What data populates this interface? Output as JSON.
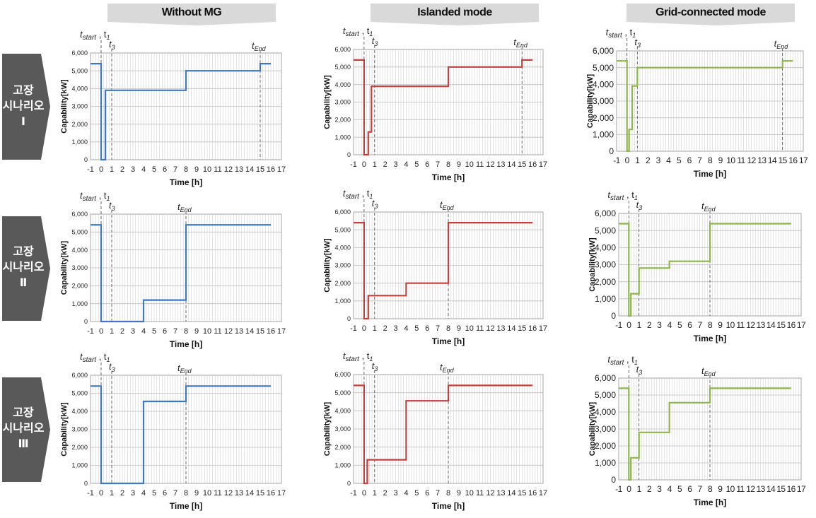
{
  "columns": [
    "Without MG",
    "Islanded mode",
    "Grid-connected mode"
  ],
  "rows": [
    "고장\n시나리오\nⅠ",
    "고장\n시나리오\nⅡ",
    "고장\n시나리오\nⅢ"
  ],
  "colors": {
    "without_mg": "#3f78bc",
    "islanded": "#c0413e",
    "grid_connected": "#8db54a",
    "header_bg": "#d9d9d9",
    "row_label_bg": "#595959",
    "grid": "#d0d0d0"
  },
  "chart_data": [
    {
      "type": "line",
      "scenario": "고장 시나리오 Ⅰ",
      "mode": "Without MG",
      "xlabel": "Time [h]",
      "ylabel": "Capability[kW]",
      "xlim": [
        -1,
        17
      ],
      "ylim": [
        0,
        6000
      ],
      "x_ticks": [
        "-1",
        "0",
        "1",
        "2",
        "3",
        "4",
        "5",
        "6",
        "7",
        "8",
        "9",
        "10",
        "11",
        "12",
        "13",
        "14",
        "15",
        "16",
        "17"
      ],
      "y_ticks": [
        "0",
        "1,000",
        "2,000",
        "3,000",
        "4,000",
        "5,000",
        "6,000"
      ],
      "y_tick_font": 9,
      "x_tick_compact": false,
      "annotations": {
        "t_start_t1": 0,
        "t3": 1,
        "t_end": 15
      },
      "series": [
        {
          "x": [
            -1,
            0,
            0,
            0.4,
            0.4,
            8,
            8,
            15,
            15,
            16
          ],
          "y": [
            5400,
            5400,
            0,
            0,
            3900,
            3900,
            5000,
            5000,
            5400,
            5400
          ]
        }
      ]
    },
    {
      "type": "line",
      "scenario": "고장 시나리오 Ⅰ",
      "mode": "Islanded mode",
      "xlabel": "Time [h]",
      "ylabel": "Capability[kW]",
      "xlim": [
        -1,
        17
      ],
      "ylim": [
        0,
        6000
      ],
      "x_ticks": [
        "-1",
        "0",
        "1",
        "2",
        "3",
        "4",
        "5",
        "6",
        "7",
        "8",
        "9",
        "10",
        "11",
        "12",
        "13",
        "14",
        "15",
        "16",
        "17"
      ],
      "y_ticks": [
        "0",
        "1,000",
        "2,000",
        "3,000",
        "4,000",
        "5,000",
        "6,000"
      ],
      "y_tick_font": 9,
      "x_tick_compact": false,
      "annotations": {
        "t_start_t1": 0,
        "t3": 1,
        "t_end": 15
      },
      "series": [
        {
          "x": [
            -1,
            0,
            0,
            0.4,
            0.4,
            0.7,
            0.7,
            8,
            8,
            15,
            15,
            16
          ],
          "y": [
            5400,
            5400,
            0,
            0,
            1300,
            1300,
            3900,
            3900,
            5000,
            5000,
            5400,
            5400
          ]
        }
      ]
    },
    {
      "type": "line",
      "scenario": "고장 시나리오 Ⅰ",
      "mode": "Grid-connected mode",
      "xlabel": "Time [h]",
      "ylabel": "Capability[kW]",
      "xlim": [
        -1,
        17
      ],
      "ylim": [
        0,
        6000
      ],
      "x_ticks": [
        "-1",
        "0",
        "1",
        "2",
        "3",
        "4",
        "5",
        "6",
        "7",
        "8",
        "9",
        "10",
        "11",
        "12",
        "13",
        "14",
        "15",
        "16",
        "17"
      ],
      "y_ticks": [
        "0",
        "1,000",
        "2,000",
        "3,000",
        "4,000",
        "5,000",
        "6,000"
      ],
      "y_tick_font": 12,
      "x_tick_compact": true,
      "annotations": {
        "t_start_t1": 0,
        "t3": 1,
        "t_end": 15
      },
      "series": [
        {
          "x": [
            -1,
            0,
            0,
            0.2,
            0.2,
            0.5,
            0.5,
            1,
            1,
            15,
            15,
            16
          ],
          "y": [
            5400,
            5400,
            0,
            0,
            1300,
            1300,
            3900,
            3900,
            5000,
            5000,
            5400,
            5400
          ]
        }
      ]
    },
    {
      "type": "line",
      "scenario": "고장 시나리오 Ⅱ",
      "mode": "Without MG",
      "xlabel": "Time [h]",
      "ylabel": "Capability[kW]",
      "xlim": [
        -1,
        17
      ],
      "ylim": [
        0,
        6000
      ],
      "x_ticks": [
        "-1",
        "0",
        "1",
        "2",
        "3",
        "4",
        "5",
        "6",
        "7",
        "8",
        "9",
        "10",
        "11",
        "12",
        "13",
        "14",
        "15",
        "16",
        "17"
      ],
      "y_ticks": [
        "0",
        "1,000",
        "2,000",
        "3,000",
        "4,000",
        "5,000",
        "6,000"
      ],
      "y_tick_font": 9,
      "x_tick_compact": false,
      "annotations": {
        "t_start_t1": 0,
        "t3": 1,
        "t_end": 8
      },
      "series": [
        {
          "x": [
            -1,
            0,
            0,
            4,
            4,
            8,
            8,
            16
          ],
          "y": [
            5400,
            5400,
            0,
            0,
            1200,
            1200,
            5400,
            5400
          ]
        }
      ]
    },
    {
      "type": "line",
      "scenario": "고장 시나리오 Ⅱ",
      "mode": "Islanded mode",
      "xlabel": "Time [h]",
      "ylabel": "Capability[kW]",
      "xlim": [
        -1,
        17
      ],
      "ylim": [
        0,
        6000
      ],
      "x_ticks": [
        "-1",
        "0",
        "1",
        "2",
        "3",
        "4",
        "5",
        "6",
        "7",
        "8",
        "9",
        "10",
        "11",
        "12",
        "13",
        "14",
        "15",
        "16",
        "17"
      ],
      "y_ticks": [
        "0",
        "1,000",
        "2,000",
        "3,000",
        "4,000",
        "5,000",
        "6,000"
      ],
      "y_tick_font": 9,
      "x_tick_compact": false,
      "annotations": {
        "t_start_t1": 0,
        "t3": 1,
        "t_end": 8
      },
      "series": [
        {
          "x": [
            -1,
            0,
            0,
            0.4,
            0.4,
            4,
            4,
            8,
            8,
            16
          ],
          "y": [
            5400,
            5400,
            0,
            0,
            1300,
            1300,
            2000,
            2000,
            5400,
            5400
          ]
        }
      ]
    },
    {
      "type": "line",
      "scenario": "고장 시나리오 Ⅱ",
      "mode": "Grid-connected mode",
      "xlabel": "Time [h]",
      "ylabel": "Capability[kW]",
      "xlim": [
        -1,
        17
      ],
      "ylim": [
        0,
        6000
      ],
      "x_ticks": [
        "-1",
        "0",
        "1",
        "2",
        "3",
        "4",
        "5",
        "6",
        "7",
        "8",
        "9",
        "10",
        "11",
        "12",
        "13",
        "14",
        "15",
        "16",
        "17"
      ],
      "y_ticks": [
        "0",
        "1,000",
        "2,000",
        "3,000",
        "4,000",
        "5,000",
        "6,000"
      ],
      "y_tick_font": 12,
      "x_tick_compact": true,
      "annotations": {
        "t_start_t1": 0,
        "t3": 1,
        "t_end": 8
      },
      "series": [
        {
          "x": [
            -1,
            0,
            0,
            0.2,
            0.2,
            1,
            1,
            4,
            4,
            8,
            8,
            16
          ],
          "y": [
            5400,
            5400,
            0,
            0,
            1300,
            1300,
            2800,
            2800,
            3200,
            3200,
            5400,
            5400
          ]
        }
      ]
    },
    {
      "type": "line",
      "scenario": "고장 시나리오 Ⅲ",
      "mode": "Without MG",
      "xlabel": "Time [h]",
      "ylabel": "Capability[kW]",
      "xlim": [
        -1,
        17
      ],
      "ylim": [
        0,
        6000
      ],
      "x_ticks": [
        "-1",
        "0",
        "1",
        "2",
        "3",
        "4",
        "5",
        "6",
        "7",
        "8",
        "9",
        "10",
        "11",
        "12",
        "13",
        "14",
        "15",
        "16",
        "17"
      ],
      "y_ticks": [
        "0",
        "1,000",
        "2,000",
        "3,000",
        "4,000",
        "5,000",
        "6,000"
      ],
      "y_tick_font": 9,
      "x_tick_compact": false,
      "annotations": {
        "t_start_t1": 0,
        "t3": 1,
        "t_end": 8
      },
      "series": [
        {
          "x": [
            -1,
            0,
            0,
            4,
            4,
            8,
            8,
            16
          ],
          "y": [
            5400,
            5400,
            0,
            0,
            4550,
            4550,
            5400,
            5400
          ]
        }
      ]
    },
    {
      "type": "line",
      "scenario": "고장 시나리오 Ⅲ",
      "mode": "Islanded mode",
      "xlabel": "Time [h]",
      "ylabel": "Capability[kW]",
      "xlim": [
        -1,
        17
      ],
      "ylim": [
        0,
        6000
      ],
      "x_ticks": [
        "-1",
        "0",
        "1",
        "2",
        "3",
        "4",
        "5",
        "6",
        "7",
        "8",
        "9",
        "10",
        "11",
        "12",
        "13",
        "14",
        "15",
        "16",
        "17"
      ],
      "y_ticks": [
        "0",
        "1,000",
        "2,000",
        "3,000",
        "4,000",
        "5,000",
        "6,000"
      ],
      "y_tick_font": 9,
      "x_tick_compact": false,
      "annotations": {
        "t_start_t1": 0,
        "t3": 1,
        "t_end": 8
      },
      "series": [
        {
          "x": [
            -1,
            0,
            0,
            0.3,
            0.3,
            4,
            4,
            8,
            8,
            16
          ],
          "y": [
            5400,
            5400,
            0,
            0,
            1300,
            1300,
            4550,
            4550,
            5400,
            5400
          ]
        }
      ]
    },
    {
      "type": "line",
      "scenario": "고장 시나리오 Ⅲ",
      "mode": "Grid-connected mode",
      "xlabel": "Time [h]",
      "ylabel": "Capability[kW]",
      "xlim": [
        -1,
        17
      ],
      "ylim": [
        0,
        6000
      ],
      "x_ticks": [
        "-1",
        "0",
        "1",
        "2",
        "3",
        "4",
        "5",
        "6",
        "7",
        "8",
        "9",
        "10",
        "11",
        "12",
        "13",
        "14",
        "15",
        "16",
        "17"
      ],
      "y_ticks": [
        "0",
        "1,000",
        "2,000",
        "3,000",
        "4,000",
        "5,000",
        "6,000"
      ],
      "y_tick_font": 12,
      "x_tick_compact": true,
      "annotations": {
        "t_start_t1": 0,
        "t3": 1,
        "t_end": 8
      },
      "series": [
        {
          "x": [
            -1,
            0,
            0,
            0.2,
            0.2,
            1,
            1,
            4,
            4,
            8,
            8,
            16
          ],
          "y": [
            5400,
            5400,
            0,
            0,
            1300,
            1300,
            2800,
            2800,
            4550,
            4550,
            5400,
            5400
          ]
        }
      ]
    }
  ]
}
